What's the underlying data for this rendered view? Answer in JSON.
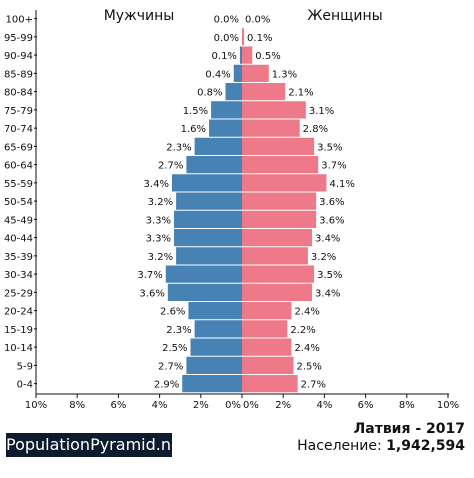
{
  "brand": "PopulationPyramid.net",
  "footer": {
    "country": "Латвия - 2017",
    "population_label": "Население:",
    "population_value": "1,942,594"
  },
  "colors": {
    "male": "#4682b4",
    "female": "#ee7989"
  },
  "chart_data": {
    "type": "bar",
    "orientation": "horizontal-pyramid",
    "series_titles": {
      "left": "Мужчины",
      "right": "Женщины"
    },
    "categories": [
      "100+",
      "95-99",
      "90-94",
      "85-89",
      "80-84",
      "75-79",
      "70-74",
      "65-69",
      "60-64",
      "55-59",
      "50-54",
      "45-49",
      "40-44",
      "35-39",
      "30-34",
      "25-29",
      "20-24",
      "15-19",
      "10-14",
      "5-9",
      "0-4"
    ],
    "series": [
      {
        "name": "Мужчины",
        "values": [
          0.0,
          0.0,
          0.1,
          0.4,
          0.8,
          1.5,
          1.6,
          2.3,
          2.7,
          3.4,
          3.2,
          3.3,
          3.3,
          3.2,
          3.7,
          3.6,
          2.6,
          2.3,
          2.5,
          2.7,
          2.9
        ],
        "labels": [
          "0.0%",
          "0.0%",
          "0.1%",
          "0.4%",
          "0.8%",
          "1.5%",
          "1.6%",
          "2.3%",
          "2.7%",
          "3.4%",
          "3.2%",
          "3.3%",
          "3.3%",
          "3.2%",
          "3.7%",
          "3.6%",
          "2.6%",
          "2.3%",
          "2.5%",
          "2.7%",
          "2.9%"
        ]
      },
      {
        "name": "Женщины",
        "values": [
          0.0,
          0.1,
          0.5,
          1.3,
          2.1,
          3.1,
          2.8,
          3.5,
          3.7,
          4.1,
          3.6,
          3.6,
          3.4,
          3.2,
          3.5,
          3.4,
          2.4,
          2.2,
          2.4,
          2.5,
          2.7
        ],
        "labels": [
          "0.0%",
          "0.1%",
          "0.5%",
          "1.3%",
          "2.1%",
          "3.1%",
          "2.8%",
          "3.5%",
          "3.7%",
          "4.1%",
          "3.6%",
          "3.6%",
          "3.4%",
          "3.2%",
          "3.5%",
          "3.4%",
          "2.4%",
          "2.2%",
          "2.4%",
          "2.5%",
          "2.7%"
        ]
      }
    ],
    "x_ticks": [
      "10%",
      "8%",
      "6%",
      "4%",
      "2%",
      "0%",
      "0%",
      "2%",
      "4%",
      "6%",
      "8%",
      "10%"
    ],
    "xlim": [
      -10,
      10
    ],
    "grid": false
  }
}
